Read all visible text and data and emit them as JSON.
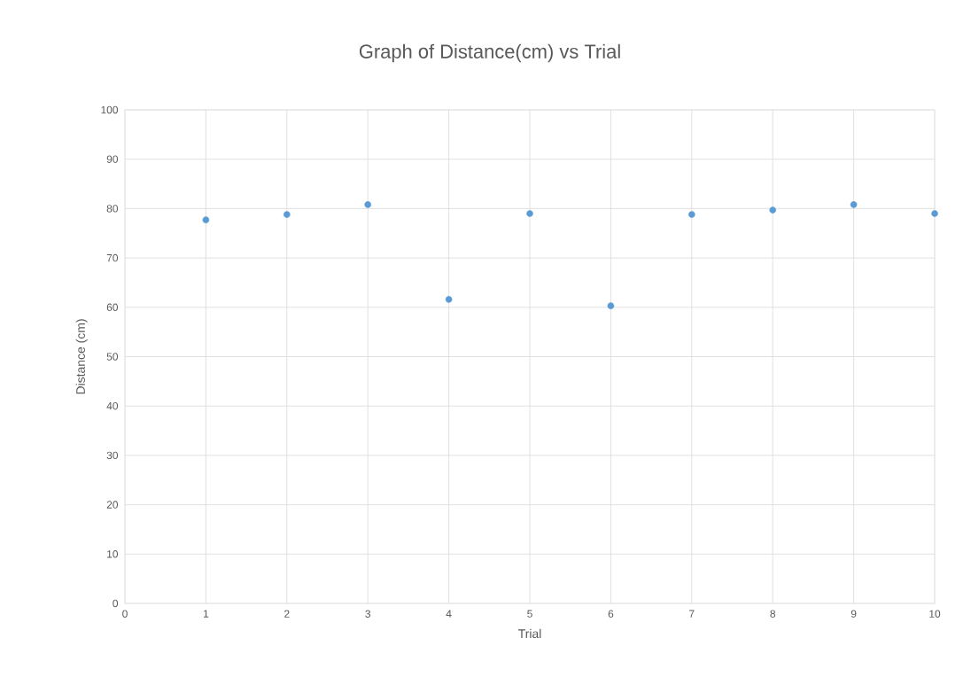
{
  "chart_data": {
    "type": "scatter",
    "title": "Graph of Distance(cm) vs Trial",
    "xlabel": "Trial",
    "ylabel": "Distance (cm)",
    "x": [
      1,
      2,
      3,
      4,
      5,
      6,
      7,
      8,
      9,
      10
    ],
    "series": [
      {
        "color": "#5b9bd5",
        "values": [
          77.7,
          78.8,
          80.8,
          61.6,
          79.0,
          60.3,
          78.8,
          79.7,
          80.8,
          79.0
        ]
      }
    ],
    "xlim": [
      0,
      10
    ],
    "xticks": [
      0,
      1,
      2,
      3,
      4,
      5,
      6,
      7,
      8,
      9,
      10
    ],
    "ylim": [
      0,
      100
    ],
    "yticks": [
      0,
      10,
      20,
      30,
      40,
      50,
      60,
      70,
      80,
      90,
      100
    ],
    "grid": true,
    "marker": "circle"
  }
}
